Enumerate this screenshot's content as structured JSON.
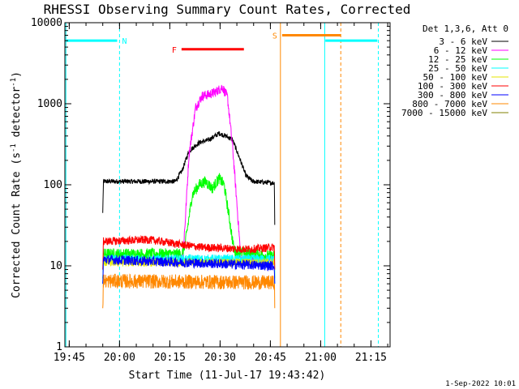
{
  "chart_data": {
    "type": "line",
    "title": "RHESSI Observing Summary Count Rates, Corrected",
    "xlabel": "Start Time (11-Jul-17 19:43:42)",
    "ylabel": "Corrected Count Rate (s⁻¹ detector⁻¹)",
    "ylabel_main": "Corrected Count Rate (s",
    "ylabel_sup1": "-1",
    "ylabel_mid": " detector",
    "ylabel_sup2": "-1",
    "ylabel_end": ")",
    "y_scale": "log",
    "xlim_minutes": [
      0,
      97
    ],
    "ylim": [
      1,
      10000
    ],
    "x_ticks": [
      {
        "value": 1.3,
        "label": "19:45"
      },
      {
        "value": 16.3,
        "label": "20:00"
      },
      {
        "value": 31.3,
        "label": "20:15"
      },
      {
        "value": 46.3,
        "label": "20:30"
      },
      {
        "value": 61.3,
        "label": "20:45"
      },
      {
        "value": 76.3,
        "label": "21:00"
      },
      {
        "value": 91.3,
        "label": "21:15"
      }
    ],
    "y_ticks": [
      {
        "value": 1,
        "label": "1"
      },
      {
        "value": 10,
        "label": "10"
      },
      {
        "value": 100,
        "label": "100"
      },
      {
        "value": 1000,
        "label": "1000"
      },
      {
        "value": 10000,
        "label": "10000"
      }
    ],
    "legend_title": "Det 1,3,6, Att 0",
    "legend_position": "right",
    "series": [
      {
        "name": "3 - 6 keV",
        "color": "#000000",
        "base": 110,
        "noise": 0.03,
        "points": [
          [
            11.3,
            45
          ],
          [
            11.5,
            110
          ],
          [
            33,
            110
          ],
          [
            35,
            150
          ],
          [
            37,
            260
          ],
          [
            40,
            330
          ],
          [
            43,
            360
          ],
          [
            46,
            430
          ],
          [
            48,
            400
          ],
          [
            50,
            360
          ],
          [
            52,
            220
          ],
          [
            54,
            130
          ],
          [
            56,
            110
          ],
          [
            62.5,
            105
          ],
          [
            62.6,
            32
          ]
        ]
      },
      {
        "name": "6 - 12 keV",
        "color": "#ff00ff",
        "base": 12,
        "noise": 0.06,
        "points": [
          [
            35,
            12
          ],
          [
            35.8,
            30
          ],
          [
            37,
            230
          ],
          [
            39,
            900
          ],
          [
            41,
            1250
          ],
          [
            43,
            1300
          ],
          [
            45,
            1400
          ],
          [
            47,
            1600
          ],
          [
            48.5,
            1200
          ],
          [
            50,
            300
          ],
          [
            51.3,
            60
          ],
          [
            52.5,
            12
          ],
          [
            62.5,
            12
          ]
        ]
      },
      {
        "name": "12 - 25 keV",
        "color": "#00ff00",
        "base": 14,
        "noise": 0.07,
        "points": [
          [
            11.3,
            7
          ],
          [
            11.5,
            14
          ],
          [
            35,
            14
          ],
          [
            36,
            20
          ],
          [
            38,
            75
          ],
          [
            40,
            100
          ],
          [
            42,
            110
          ],
          [
            44,
            90
          ],
          [
            46,
            120
          ],
          [
            47.5,
            100
          ],
          [
            49,
            40
          ],
          [
            50.5,
            15
          ],
          [
            62.5,
            13
          ],
          [
            62.6,
            7
          ]
        ]
      },
      {
        "name": "25 - 50 keV",
        "color": "#00ffff",
        "base": 12,
        "noise": 0.06,
        "points": [
          [
            11.3,
            6
          ],
          [
            11.5,
            12
          ],
          [
            62.5,
            12
          ],
          [
            62.6,
            6
          ]
        ]
      },
      {
        "name": "50 - 100 keV",
        "color": "#e6e600",
        "base": 11,
        "noise": 0.05,
        "points": [
          [
            11.5,
            11
          ],
          [
            62.5,
            11
          ]
        ]
      },
      {
        "name": "100 - 300 keV",
        "color": "#ff0000",
        "base": 18,
        "noise": 0.05,
        "points": [
          [
            11.3,
            9
          ],
          [
            11.5,
            20
          ],
          [
            25,
            21
          ],
          [
            40,
            17
          ],
          [
            55,
            16
          ],
          [
            62.5,
            17
          ],
          [
            62.6,
            9
          ]
        ]
      },
      {
        "name": "300 - 800 keV",
        "color": "#0000ff",
        "base": 11,
        "noise": 0.06,
        "points": [
          [
            11.3,
            6
          ],
          [
            11.5,
            12
          ],
          [
            35,
            11
          ],
          [
            62.5,
            10
          ],
          [
            62.6,
            6
          ]
        ]
      },
      {
        "name": "800 - 7000 keV",
        "color": "#ff8800",
        "base": 6.2,
        "noise": 0.09,
        "points": [
          [
            11.3,
            3
          ],
          [
            11.5,
            6.5
          ],
          [
            62.5,
            6.2
          ],
          [
            62.6,
            3
          ]
        ]
      },
      {
        "name": "7000 - 15000 keV",
        "color": "#808000",
        "base": 8,
        "noise": 0.04,
        "points": []
      }
    ],
    "flag_bars": [
      {
        "label": "N",
        "color": "#00ffff",
        "x_start": 0.3,
        "x_end": 15.6,
        "y": 6000
      },
      {
        "label": "",
        "color": "#00ffff",
        "x_start": 77.7,
        "x_end": 93.2,
        "y": 6000
      },
      {
        "label": "F",
        "color": "#ff0000",
        "x_start": 34.8,
        "x_end": 53.4,
        "y": 4700
      },
      {
        "label": "S",
        "color": "#ff8800",
        "x_start": 64.8,
        "x_end": 82.3,
        "y": 7000
      }
    ],
    "vertical_lines": [
      {
        "x": 0.3,
        "color": "#00ffff",
        "style": "solid"
      },
      {
        "x": 16.3,
        "color": "#00ffff",
        "style": "dashed"
      },
      {
        "x": 77.5,
        "color": "#00ffff",
        "style": "solid"
      },
      {
        "x": 93.5,
        "color": "#00ffff",
        "style": "dashed"
      },
      {
        "x": 64.3,
        "color": "#ff8800",
        "style": "solid"
      },
      {
        "x": 82.3,
        "color": "#ff8800",
        "style": "dashed"
      }
    ],
    "timestamp": "1-Sep-2022 10:01"
  }
}
